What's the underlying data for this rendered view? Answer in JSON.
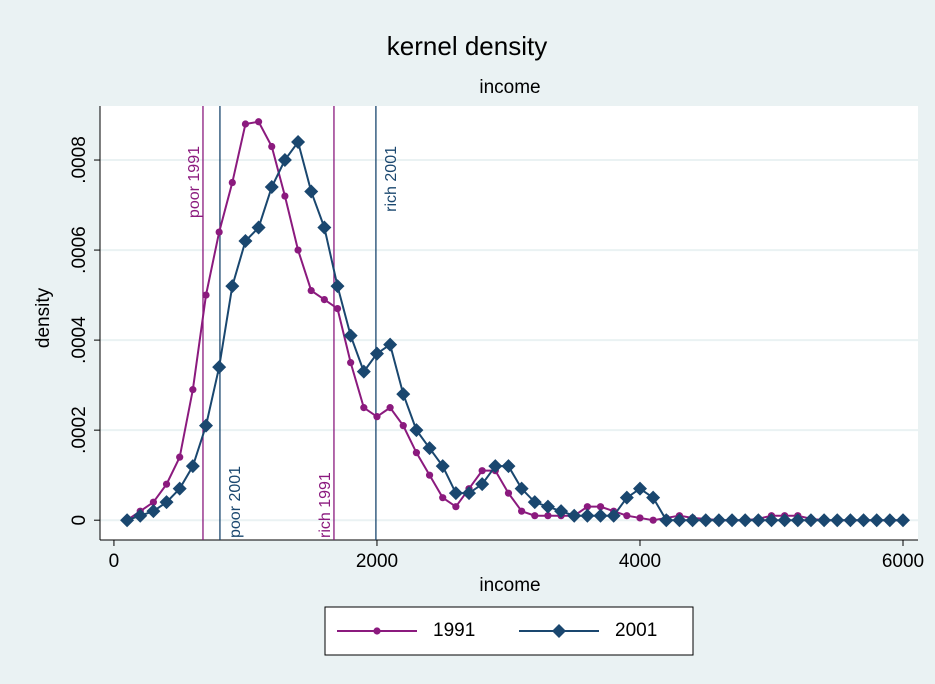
{
  "chart_data": {
    "type": "line",
    "title": "kernel density",
    "subtitle": "income",
    "x_label": "income",
    "y_label": "density",
    "x": [
      100,
      200,
      300,
      400,
      500,
      600,
      700,
      800,
      900,
      1000,
      1100,
      1200,
      1300,
      1400,
      1500,
      1600,
      1700,
      1800,
      1900,
      2000,
      2100,
      2200,
      2300,
      2400,
      2500,
      2600,
      2700,
      2800,
      2900,
      3000,
      3100,
      3200,
      3300,
      3400,
      3500,
      3600,
      3700,
      3800,
      3900,
      4000,
      4100,
      4200,
      4300,
      4400,
      4500,
      4600,
      4700,
      4800,
      4900,
      5000,
      5100,
      5200,
      5300,
      5400,
      5500,
      5600,
      5700,
      5800,
      5900,
      6000
    ],
    "series": [
      {
        "name": "1991",
        "color": "#8b1a7e",
        "marker": "circle",
        "values": [
          0,
          2e-05,
          4e-05,
          8e-05,
          0.00014,
          0.00029,
          0.0005,
          0.00064,
          0.00075,
          0.00088,
          0.000885,
          0.00083,
          0.00072,
          0.0006,
          0.00051,
          0.00049,
          0.00047,
          0.00035,
          0.00025,
          0.00023,
          0.00025,
          0.00021,
          0.00015,
          0.0001,
          5e-05,
          3e-05,
          7e-05,
          0.00011,
          0.00011,
          6e-05,
          2e-05,
          1e-05,
          1e-05,
          1e-05,
          1e-05,
          3e-05,
          3e-05,
          2e-05,
          1e-05,
          5e-06,
          0,
          5e-06,
          1e-05,
          5e-06,
          3e-06,
          0,
          0,
          0,
          3e-06,
          1e-05,
          1e-05,
          1e-05,
          3e-06,
          0,
          0,
          0,
          0,
          0,
          0,
          0
        ]
      },
      {
        "name": "2001",
        "color": "#1a476f",
        "marker": "diamond",
        "values": [
          0,
          1e-05,
          2e-05,
          4e-05,
          7e-05,
          0.00012,
          0.00021,
          0.00034,
          0.00052,
          0.00062,
          0.00065,
          0.00074,
          0.0008,
          0.00084,
          0.00073,
          0.00065,
          0.00052,
          0.00041,
          0.00033,
          0.00037,
          0.00039,
          0.00028,
          0.0002,
          0.00016,
          0.00012,
          6e-05,
          6e-05,
          8e-05,
          0.00012,
          0.00012,
          7e-05,
          4e-05,
          3e-05,
          2e-05,
          1e-05,
          1e-05,
          1e-05,
          1e-05,
          5e-05,
          7e-05,
          5e-05,
          0,
          0,
          0,
          0,
          0,
          0,
          0,
          0,
          0,
          0,
          0,
          0,
          0,
          0,
          0,
          0,
          0,
          0,
          0
        ]
      }
    ],
    "reference_lines": [
      {
        "label": "poor 1991",
        "x": 677,
        "color": "#8b1a7e"
      },
      {
        "label": "poor 2001",
        "x": 806,
        "color": "#1a476f"
      },
      {
        "label": "rich 1991",
        "x": 1673,
        "color": "#8b1a7e"
      },
      {
        "label": "rich 2001",
        "x": 1992,
        "color": "#1a476f"
      }
    ],
    "xlim": [
      -106,
      6114
    ],
    "ylim": [
      -4.4e-05,
      0.00092
    ],
    "xticks": [
      0,
      2000,
      4000,
      6000
    ],
    "yticks": [
      0,
      {
        "value": 0.0002,
        "label": ".0002"
      },
      {
        "value": 0.0004,
        "label": ".0004"
      },
      {
        "value": 0.0006,
        "label": ".0006"
      },
      {
        "value": 0.0008,
        "label": ".0008"
      }
    ],
    "grid": true,
    "legend": "bottom"
  }
}
